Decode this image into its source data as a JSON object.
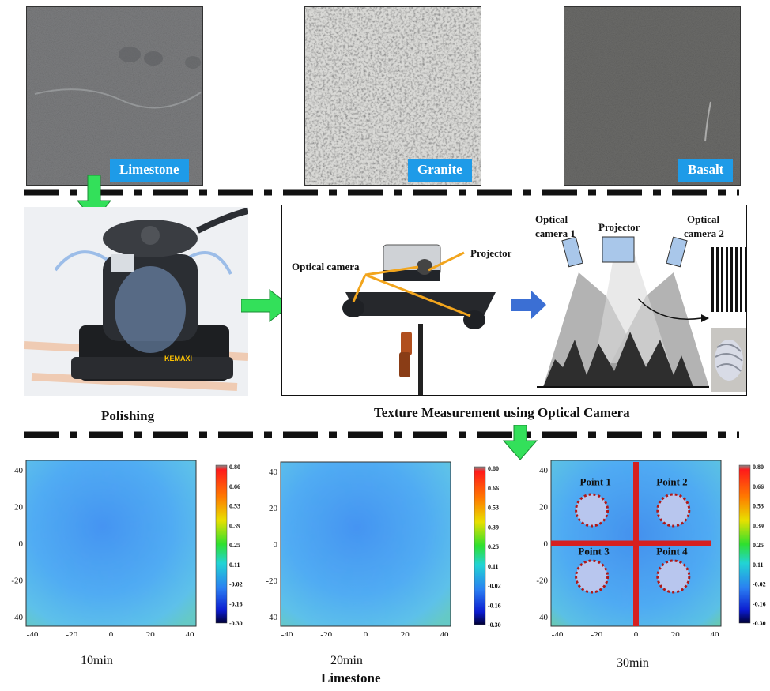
{
  "rocks": [
    {
      "label": "Limestone"
    },
    {
      "label": "Granite"
    },
    {
      "label": "Basalt"
    }
  ],
  "polishing": {
    "caption": "Polishing",
    "brand": "KEMAXI"
  },
  "setup": {
    "caption": "Texture Measurement using Optical Camera",
    "photo_labels": {
      "camera": "Optical camera",
      "projector": "Projector"
    },
    "schematic_labels": {
      "camera1_line1": "Optical",
      "camera1_line2": "camera 1",
      "projector": "Projector",
      "camera2_line1": "Optical",
      "camera2_line2": "camera 2"
    }
  },
  "heatmaps": {
    "x_ticks": [
      "-40",
      "-20",
      "0",
      "20",
      "40"
    ],
    "y_ticks": [
      "40",
      "20",
      "0",
      "-20",
      "-40"
    ],
    "colorbar_ticks": [
      "0.80",
      "0.66",
      "0.53",
      "0.39",
      "0.25",
      "0.11",
      "-0.02",
      "-0.16",
      "-0.30"
    ],
    "panels": [
      {
        "caption": "10min"
      },
      {
        "caption": "20min"
      },
      {
        "caption": "30min"
      }
    ],
    "points": [
      "Point 1",
      "Point 2",
      "Point 3",
      "Point 4"
    ],
    "group_caption": "Limestone"
  },
  "colors": {
    "label_bg": "#1e9be8",
    "arrow_green": "#33e05a",
    "marker_red": "#d62020"
  }
}
